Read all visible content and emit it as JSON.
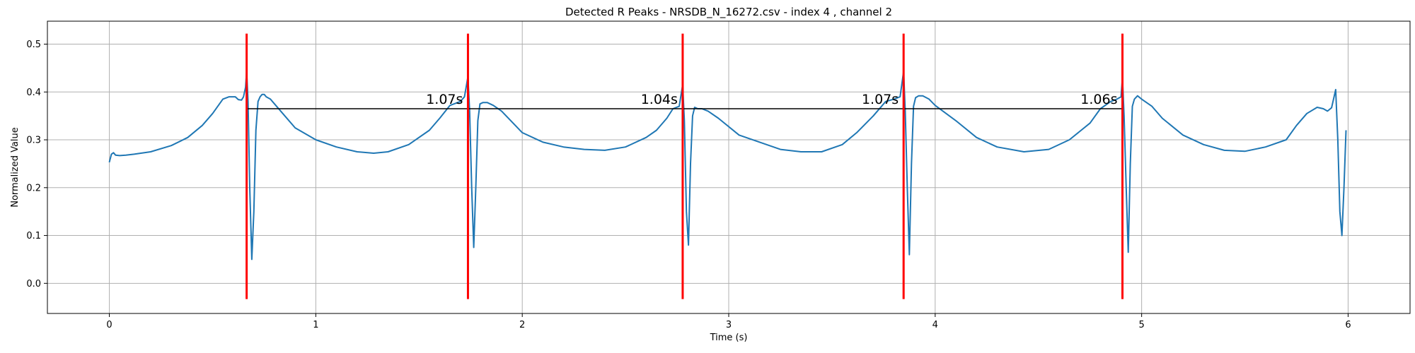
{
  "chart_data": {
    "type": "line",
    "title": "Detected R Peaks - NRSDB_N_16272.csv - index 4 , channel 2",
    "xlabel": "Time (s)",
    "ylabel": "Normalized Value",
    "xlim": [
      -0.3,
      6.3
    ],
    "ylim": [
      -0.063,
      0.548
    ],
    "x_ticks": [
      0,
      1,
      2,
      3,
      4,
      5,
      6
    ],
    "y_ticks": [
      0.0,
      0.1,
      0.2,
      0.3,
      0.4,
      0.5
    ],
    "x_tick_labels": [
      "0",
      "1",
      "2",
      "3",
      "4",
      "5",
      "6"
    ],
    "y_tick_labels": [
      "0.0",
      "0.1",
      "0.2",
      "0.3",
      "0.4",
      "0.5"
    ],
    "grid": true,
    "r_peaks": [
      0.665,
      1.737,
      2.777,
      3.847,
      4.907
    ],
    "r_peak_line_range": [
      -0.033,
      0.522
    ],
    "rr_line_y": 0.365,
    "rr_intervals": [
      {
        "label": "1.07s",
        "x": 1.737
      },
      {
        "label": "1.04s",
        "x": 2.777
      },
      {
        "label": "1.07s",
        "x": 3.847
      },
      {
        "label": "1.06s",
        "x": 4.907
      }
    ],
    "series": [
      {
        "color": "#1f77b4",
        "x": [
          0,
          0.01,
          0.02,
          0.03,
          0.05,
          0.08,
          0.12,
          0.2,
          0.3,
          0.38,
          0.45,
          0.5,
          0.55,
          0.58,
          0.61,
          0.625,
          0.64,
          0.65,
          0.66,
          0.665,
          0.672,
          0.68,
          0.69,
          0.7,
          0.71,
          0.72,
          0.73,
          0.74,
          0.75,
          0.76,
          0.78,
          0.8,
          0.85,
          0.9,
          1.0,
          1.1,
          1.2,
          1.28,
          1.35,
          1.45,
          1.55,
          1.6,
          1.65,
          1.7,
          1.72,
          1.737,
          1.745,
          1.755,
          1.765,
          1.775,
          1.785,
          1.795,
          1.81,
          1.83,
          1.86,
          1.9,
          2.0,
          2.1,
          2.2,
          2.3,
          2.4,
          2.5,
          2.6,
          2.65,
          2.7,
          2.73,
          2.76,
          2.777,
          2.785,
          2.795,
          2.805,
          2.815,
          2.825,
          2.835,
          2.85,
          2.87,
          2.9,
          2.95,
          3.05,
          3.15,
          3.25,
          3.35,
          3.45,
          3.55,
          3.62,
          3.7,
          3.76,
          3.8,
          3.83,
          3.847,
          3.855,
          3.865,
          3.875,
          3.885,
          3.895,
          3.905,
          3.92,
          3.94,
          3.97,
          4.0,
          4.1,
          4.2,
          4.3,
          4.43,
          4.55,
          4.65,
          4.75,
          4.8,
          4.85,
          4.88,
          4.9,
          4.907,
          4.915,
          4.925,
          4.935,
          4.945,
          4.955,
          4.965,
          4.98,
          5.0,
          5.05,
          5.1,
          5.2,
          5.3,
          5.4,
          5.5,
          5.6,
          5.7,
          5.75,
          5.8,
          5.85,
          5.88,
          5.9,
          5.92,
          5.94,
          5.95,
          5.96,
          5.97,
          5.98,
          5.99
        ],
        "y": [
          0.253,
          0.27,
          0.273,
          0.268,
          0.267,
          0.268,
          0.27,
          0.275,
          0.288,
          0.305,
          0.33,
          0.355,
          0.385,
          0.39,
          0.39,
          0.384,
          0.383,
          0.39,
          0.41,
          0.443,
          0.38,
          0.2,
          0.05,
          0.15,
          0.32,
          0.38,
          0.39,
          0.395,
          0.395,
          0.39,
          0.385,
          0.375,
          0.35,
          0.325,
          0.3,
          0.285,
          0.275,
          0.272,
          0.275,
          0.29,
          0.32,
          0.345,
          0.372,
          0.38,
          0.39,
          0.432,
          0.36,
          0.2,
          0.075,
          0.2,
          0.34,
          0.375,
          0.378,
          0.378,
          0.372,
          0.36,
          0.315,
          0.295,
          0.285,
          0.28,
          0.278,
          0.285,
          0.305,
          0.32,
          0.345,
          0.365,
          0.37,
          0.415,
          0.34,
          0.15,
          0.08,
          0.25,
          0.35,
          0.368,
          0.365,
          0.365,
          0.36,
          0.345,
          0.31,
          0.295,
          0.28,
          0.275,
          0.275,
          0.29,
          0.315,
          0.35,
          0.38,
          0.385,
          0.39,
          0.443,
          0.36,
          0.2,
          0.06,
          0.25,
          0.37,
          0.388,
          0.392,
          0.392,
          0.385,
          0.372,
          0.34,
          0.305,
          0.285,
          0.275,
          0.28,
          0.3,
          0.335,
          0.365,
          0.38,
          0.385,
          0.39,
          0.43,
          0.35,
          0.2,
          0.065,
          0.25,
          0.37,
          0.385,
          0.392,
          0.385,
          0.37,
          0.345,
          0.31,
          0.29,
          0.278,
          0.276,
          0.285,
          0.3,
          0.33,
          0.355,
          0.368,
          0.365,
          0.36,
          0.367,
          0.405,
          0.3,
          0.15,
          0.1,
          0.2,
          0.32
        ]
      }
    ]
  }
}
